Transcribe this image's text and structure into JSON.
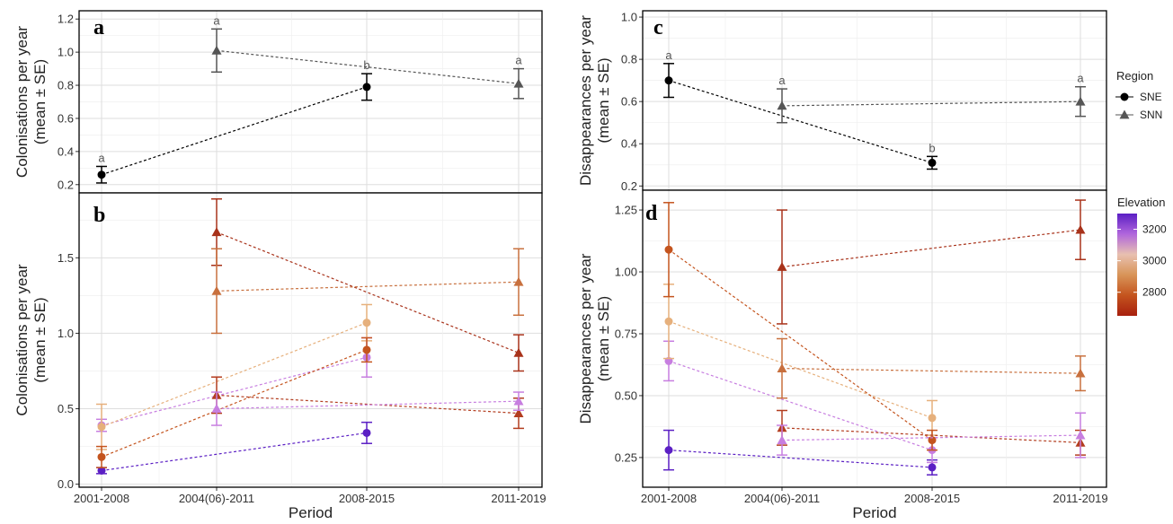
{
  "chart_data": [
    {
      "panel": "a",
      "type": "line",
      "categories": [
        "2001-2008",
        "2004(06)-2011",
        "2008-2015",
        "2011-2019"
      ],
      "ylabel": "Colonisations per year\n(mean ± SE)",
      "ylim": [
        0.15,
        1.25
      ],
      "yticks": [
        0.2,
        0.4,
        0.6,
        0.8,
        1.0,
        1.2
      ],
      "grid": true,
      "series": [
        {
          "name": "SNE",
          "marker": "circle",
          "color": "#000000",
          "points": [
            {
              "x": "2001-2008",
              "y": 0.26,
              "se": 0.05,
              "label": "a"
            },
            {
              "x": "2008-2015",
              "y": 0.79,
              "se": 0.08,
              "label": "b"
            }
          ]
        },
        {
          "name": "SNN",
          "marker": "triangle",
          "color": "#555555",
          "points": [
            {
              "x": "2004(06)-2011",
              "y": 1.01,
              "se": 0.13,
              "label": "a"
            },
            {
              "x": "2011-2019",
              "y": 0.81,
              "se": 0.09,
              "label": "a"
            }
          ]
        }
      ]
    },
    {
      "panel": "b",
      "type": "line",
      "categories": [
        "2001-2008",
        "2004(06)-2011",
        "2008-2015",
        "2011-2019"
      ],
      "xlabel": "Period",
      "ylabel": "Colonisations per year\n(mean ± SE)",
      "ylim": [
        -0.02,
        1.93
      ],
      "yticks": [
        0.0,
        0.5,
        1.0,
        1.5
      ],
      "grid": true,
      "series": [
        {
          "marker": "circle",
          "color": "#5b1fc4",
          "points": [
            {
              "x": "2001-2008",
              "y": 0.09,
              "se": 0.02
            },
            {
              "x": "2008-2015",
              "y": 0.34,
              "se": 0.07
            }
          ]
        },
        {
          "marker": "circle",
          "color": "#c77ee0",
          "points": [
            {
              "x": "2001-2008",
              "y": 0.39,
              "se": 0.04
            },
            {
              "x": "2008-2015",
              "y": 0.84,
              "se": 0.13
            }
          ]
        },
        {
          "marker": "circle",
          "color": "#e6b07c",
          "points": [
            {
              "x": "2001-2008",
              "y": 0.38,
              "se": 0.15
            },
            {
              "x": "2008-2015",
              "y": 1.07,
              "se": 0.12
            }
          ]
        },
        {
          "marker": "circle",
          "color": "#c4541e",
          "points": [
            {
              "x": "2001-2008",
              "y": 0.18,
              "se": 0.07
            },
            {
              "x": "2008-2015",
              "y": 0.89,
              "se": 0.08
            }
          ]
        },
        {
          "marker": "triangle",
          "color": "#a8321a",
          "points": [
            {
              "x": "2004(06)-2011",
              "y": 1.67,
              "se": 0.22
            },
            {
              "x": "2011-2019",
              "y": 0.87,
              "se": 0.12
            }
          ]
        },
        {
          "marker": "triangle",
          "color": "#c8703e",
          "points": [
            {
              "x": "2004(06)-2011",
              "y": 1.28,
              "se": 0.28
            },
            {
              "x": "2011-2019",
              "y": 1.34,
              "se": 0.22
            }
          ]
        },
        {
          "marker": "triangle",
          "color": "#b33d1f",
          "points": [
            {
              "x": "2004(06)-2011",
              "y": 0.59,
              "se": 0.12
            },
            {
              "x": "2011-2019",
              "y": 0.47,
              "se": 0.1
            }
          ]
        },
        {
          "marker": "triangle",
          "color": "#c77ee0",
          "points": [
            {
              "x": "2004(06)-2011",
              "y": 0.5,
              "se": 0.11
            },
            {
              "x": "2011-2019",
              "y": 0.55,
              "se": 0.06
            }
          ]
        }
      ]
    },
    {
      "panel": "c",
      "type": "line",
      "categories": [
        "2001-2008",
        "2004(06)-2011",
        "2008-2015",
        "2011-2019"
      ],
      "ylabel": "Disappearances per year\n(mean ± SE)",
      "ylim": [
        0.18,
        1.03
      ],
      "yticks": [
        0.2,
        0.4,
        0.6,
        0.8,
        1.0
      ],
      "grid": true,
      "series": [
        {
          "name": "SNE",
          "marker": "circle",
          "color": "#000000",
          "points": [
            {
              "x": "2001-2008",
              "y": 0.7,
              "se": 0.08,
              "label": "a"
            },
            {
              "x": "2008-2015",
              "y": 0.31,
              "se": 0.03,
              "label": "b"
            }
          ]
        },
        {
          "name": "SNN",
          "marker": "triangle",
          "color": "#555555",
          "points": [
            {
              "x": "2004(06)-2011",
              "y": 0.58,
              "se": 0.08,
              "label": "a"
            },
            {
              "x": "2011-2019",
              "y": 0.6,
              "se": 0.07,
              "label": "a"
            }
          ]
        }
      ]
    },
    {
      "panel": "d",
      "type": "line",
      "categories": [
        "2001-2008",
        "2004(06)-2011",
        "2008-2015",
        "2011-2019"
      ],
      "xlabel": "Period",
      "ylabel": "Disappearances per year\n(mean ± SE)",
      "ylim": [
        0.13,
        1.33
      ],
      "yticks": [
        0.25,
        0.5,
        0.75,
        1.0,
        1.25
      ],
      "tick_labels": [
        "0.25",
        "0.50",
        "0.75",
        "1.00",
        "1.25"
      ],
      "grid": true,
      "series": [
        {
          "marker": "circle",
          "color": "#5b1fc4",
          "points": [
            {
              "x": "2001-2008",
              "y": 0.28,
              "se": 0.08
            },
            {
              "x": "2008-2015",
              "y": 0.21,
              "se": 0.03
            }
          ]
        },
        {
          "marker": "circle",
          "color": "#c77ee0",
          "points": [
            {
              "x": "2001-2008",
              "y": 0.64,
              "se": 0.08
            },
            {
              "x": "2008-2015",
              "y": 0.28,
              "se": 0.05
            }
          ]
        },
        {
          "marker": "circle",
          "color": "#e6b07c",
          "points": [
            {
              "x": "2001-2008",
              "y": 0.8,
              "se": 0.15
            },
            {
              "x": "2008-2015",
              "y": 0.41,
              "se": 0.07
            }
          ]
        },
        {
          "marker": "circle",
          "color": "#c4541e",
          "points": [
            {
              "x": "2001-2008",
              "y": 1.09,
              "se": 0.19
            },
            {
              "x": "2008-2015",
              "y": 0.32,
              "se": 0.04
            }
          ]
        },
        {
          "marker": "triangle",
          "color": "#a8321a",
          "points": [
            {
              "x": "2004(06)-2011",
              "y": 1.02,
              "se": 0.23
            },
            {
              "x": "2011-2019",
              "y": 1.17,
              "se": 0.12
            }
          ]
        },
        {
          "marker": "triangle",
          "color": "#c8703e",
          "points": [
            {
              "x": "2004(06)-2011",
              "y": 0.61,
              "se": 0.12
            },
            {
              "x": "2011-2019",
              "y": 0.59,
              "se": 0.07
            }
          ]
        },
        {
          "marker": "triangle",
          "color": "#b33d1f",
          "points": [
            {
              "x": "2004(06)-2011",
              "y": 0.37,
              "se": 0.07
            },
            {
              "x": "2011-2019",
              "y": 0.31,
              "se": 0.05
            }
          ]
        },
        {
          "marker": "triangle",
          "color": "#c77ee0",
          "points": [
            {
              "x": "2004(06)-2011",
              "y": 0.32,
              "se": 0.06
            },
            {
              "x": "2011-2019",
              "y": 0.34,
              "se": 0.09
            }
          ]
        }
      ]
    }
  ],
  "legend_region": {
    "title": "Region",
    "items": [
      {
        "label": "SNE",
        "marker": "circle",
        "color": "#000000"
      },
      {
        "label": "SNN",
        "marker": "triangle",
        "color": "#555555"
      }
    ]
  },
  "legend_elevation": {
    "title": "Elevation",
    "range": [
      2650,
      3300
    ],
    "ticks": [
      3200,
      3000,
      2800
    ],
    "colors": [
      "#5b1fc4",
      "#b066dc",
      "#e8c0b0",
      "#d89458",
      "#c4541e",
      "#a8200e"
    ]
  }
}
